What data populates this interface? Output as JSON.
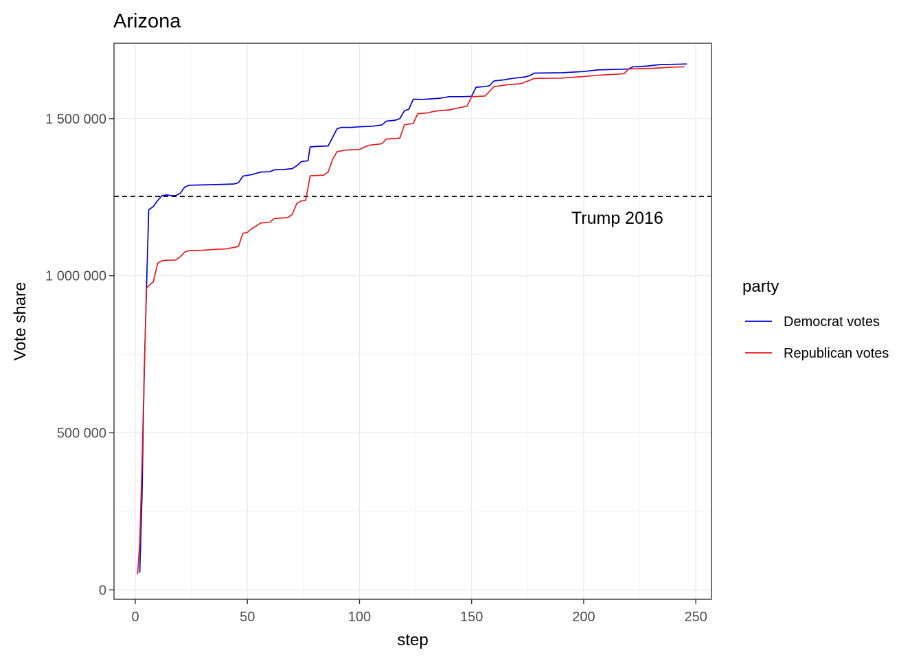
{
  "chart_data": {
    "type": "line",
    "title": "Arizona",
    "xlabel": "step",
    "ylabel": "Vote share",
    "xlim": [
      -9.5,
      257
    ],
    "ylim": [
      -30000,
      1740000
    ],
    "x_ticks": [
      0,
      50,
      100,
      150,
      200,
      250
    ],
    "x_tick_labels": [
      "0",
      "50",
      "100",
      "150",
      "200",
      "250"
    ],
    "y_ticks": [
      0,
      500000,
      1000000,
      1500000
    ],
    "y_tick_labels": [
      "0",
      "500 000",
      "1 000 000",
      "1 500 000"
    ],
    "grid": true,
    "legend": {
      "title": "party",
      "position": "right"
    },
    "reference_line": {
      "y": 1252401,
      "style": "dashed",
      "label": "Trump 2016",
      "label_x": 215,
      "label_y": 1165000
    },
    "series": [
      {
        "name": "Democrat votes",
        "color": "#0000cc",
        "points": [
          [
            2,
            55000
          ],
          [
            3,
            300000
          ],
          [
            4,
            700000
          ],
          [
            5,
            960000
          ],
          [
            6,
            1210000
          ],
          [
            8,
            1220000
          ],
          [
            10,
            1240000
          ],
          [
            12,
            1255000
          ],
          [
            14,
            1257000
          ],
          [
            16,
            1255000
          ],
          [
            18,
            1255000
          ],
          [
            20,
            1262000
          ],
          [
            22,
            1282000
          ],
          [
            24,
            1288000
          ],
          [
            30,
            1289000
          ],
          [
            36,
            1290000
          ],
          [
            40,
            1291000
          ],
          [
            44,
            1292000
          ],
          [
            46,
            1296000
          ],
          [
            48,
            1317000
          ],
          [
            52,
            1322000
          ],
          [
            56,
            1330000
          ],
          [
            60,
            1331000
          ],
          [
            62,
            1337000
          ],
          [
            66,
            1338000
          ],
          [
            70,
            1341000
          ],
          [
            72,
            1350000
          ],
          [
            74,
            1363000
          ],
          [
            77,
            1366000
          ],
          [
            78,
            1410000
          ],
          [
            82,
            1412000
          ],
          [
            86,
            1413000
          ],
          [
            88,
            1440000
          ],
          [
            90,
            1468000
          ],
          [
            92,
            1472000
          ],
          [
            96,
            1472000
          ],
          [
            100,
            1474000
          ],
          [
            106,
            1476000
          ],
          [
            110,
            1480000
          ],
          [
            112,
            1492000
          ],
          [
            116,
            1495000
          ],
          [
            118,
            1500000
          ],
          [
            120,
            1525000
          ],
          [
            122,
            1530000
          ],
          [
            124,
            1562000
          ],
          [
            128,
            1561000
          ],
          [
            132,
            1563000
          ],
          [
            136,
            1565000
          ],
          [
            140,
            1570000
          ],
          [
            146,
            1570000
          ],
          [
            150,
            1571000
          ],
          [
            152,
            1600000
          ],
          [
            156,
            1602000
          ],
          [
            158,
            1605000
          ],
          [
            160,
            1620000
          ],
          [
            164,
            1623000
          ],
          [
            168,
            1628000
          ],
          [
            174,
            1633000
          ],
          [
            176,
            1637000
          ],
          [
            178,
            1645000
          ],
          [
            190,
            1646000
          ],
          [
            200,
            1650000
          ],
          [
            206,
            1655000
          ],
          [
            220,
            1658000
          ],
          [
            222,
            1665000
          ],
          [
            228,
            1667000
          ],
          [
            234,
            1672000
          ],
          [
            240,
            1673000
          ],
          [
            246,
            1674000
          ]
        ]
      },
      {
        "name": "Republican votes",
        "color": "#e31a1c",
        "points": [
          [
            1,
            50000
          ],
          [
            2,
            150000
          ],
          [
            3,
            400000
          ],
          [
            4,
            700000
          ],
          [
            5,
            960000
          ],
          [
            7,
            975000
          ],
          [
            8,
            980000
          ],
          [
            10,
            1040000
          ],
          [
            12,
            1048000
          ],
          [
            14,
            1049000
          ],
          [
            18,
            1050000
          ],
          [
            20,
            1060000
          ],
          [
            22,
            1075000
          ],
          [
            24,
            1080000
          ],
          [
            30,
            1081000
          ],
          [
            36,
            1084000
          ],
          [
            40,
            1085000
          ],
          [
            44,
            1090000
          ],
          [
            46,
            1093000
          ],
          [
            48,
            1135000
          ],
          [
            50,
            1138000
          ],
          [
            52,
            1150000
          ],
          [
            56,
            1168000
          ],
          [
            60,
            1170000
          ],
          [
            62,
            1182000
          ],
          [
            68,
            1185000
          ],
          [
            70,
            1195000
          ],
          [
            72,
            1230000
          ],
          [
            74,
            1238000
          ],
          [
            76,
            1240000
          ],
          [
            78,
            1318000
          ],
          [
            84,
            1320000
          ],
          [
            86,
            1330000
          ],
          [
            88,
            1370000
          ],
          [
            90,
            1395000
          ],
          [
            94,
            1400000
          ],
          [
            100,
            1402000
          ],
          [
            104,
            1415000
          ],
          [
            110,
            1420000
          ],
          [
            112,
            1435000
          ],
          [
            118,
            1438000
          ],
          [
            120,
            1480000
          ],
          [
            124,
            1485000
          ],
          [
            126,
            1516000
          ],
          [
            130,
            1518000
          ],
          [
            134,
            1524000
          ],
          [
            140,
            1528000
          ],
          [
            146,
            1537000
          ],
          [
            148,
            1540000
          ],
          [
            150,
            1570000
          ],
          [
            156,
            1572000
          ],
          [
            160,
            1602000
          ],
          [
            166,
            1608000
          ],
          [
            172,
            1611000
          ],
          [
            178,
            1628000
          ],
          [
            190,
            1629000
          ],
          [
            200,
            1634000
          ],
          [
            206,
            1638000
          ],
          [
            218,
            1643000
          ],
          [
            220,
            1658000
          ],
          [
            230,
            1660000
          ],
          [
            240,
            1664000
          ],
          [
            245,
            1665000
          ]
        ]
      }
    ]
  }
}
